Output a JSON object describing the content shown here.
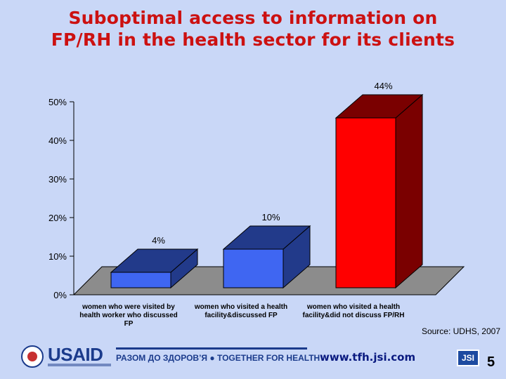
{
  "slide": {
    "title_line1": "Suboptimal access to information on",
    "title_line2": "FP/RH in the health sector for its clients",
    "source": "Source: UDHS, 2007",
    "url": "www.tfh.jsi.com",
    "page_number": "5"
  },
  "footer": {
    "usaid_logo": "USAID",
    "partner_logo": "РАЗОМ ДО ЗДОРОВ’Я ● TOGETHER FOR HEALTH",
    "jsi_logo": "JSI"
  },
  "chart_data": {
    "type": "bar",
    "title": "Suboptimal access to information on FP/RH in the health sector for its clients",
    "categories": [
      "women who were visited by health worker who discussed FP",
      "women who visited a health facility&discussed FP",
      "women who visited a health facility&did not discuss FP/RH"
    ],
    "category_lines": [
      [
        "women who were visited by",
        "health worker who discussed",
        "FP"
      ],
      [
        "women who visited a health",
        "facility&discussed FP"
      ],
      [
        "women who visited a health",
        "facility&did not discuss FP/RH"
      ]
    ],
    "values": [
      4,
      10,
      44
    ],
    "value_labels": [
      "4%",
      "10%",
      "44%"
    ],
    "ylim": [
      0,
      50
    ],
    "yticks": [
      0,
      10,
      20,
      30,
      40,
      50
    ],
    "ytick_labels": [
      "0%",
      "10%",
      "20%",
      "30%",
      "40%",
      "50%"
    ],
    "bar_colors": [
      "#3f66f2",
      "#3f66f2",
      "#ff0000"
    ],
    "bar_side_colors": [
      "#223a8a",
      "#223a8a",
      "#7a0000"
    ],
    "floor_color": "#8c8c8c",
    "style": "3d",
    "grid": false
  }
}
